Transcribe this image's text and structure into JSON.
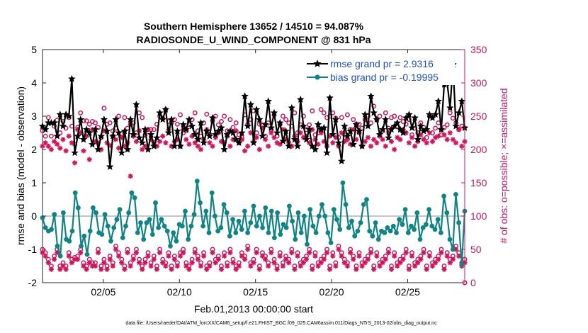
{
  "chart_data": {
    "type": "line",
    "title_line1": "Southern Hemisphere 13652 / 14510 = 94.087%",
    "title_line2": "RADIOSONDE_U_WIND_COMPONENT @ 831 hPa",
    "xlabel": "Feb.01,2013 00:00:00 start",
    "ylabel_left": "rmse and bias (model - observation)",
    "ylabel_right": "# of obs: o=possible; ×=assimilated",
    "ylim_left": [
      -2,
      5
    ],
    "ylim_right": [
      0,
      350
    ],
    "xlim_days": [
      1.0,
      28.75
    ],
    "x_tick_labels": [
      "02/05",
      "02/10",
      "02/15",
      "02/20",
      "02/25"
    ],
    "x_tick_days": [
      5,
      10,
      15,
      20,
      25
    ],
    "y_left_ticks": [
      "-2",
      "-1",
      "0",
      "1",
      "2",
      "3",
      "4",
      "5"
    ],
    "y_right_ticks": [
      "0",
      "50",
      "100",
      "150",
      "200",
      "250",
      "300",
      "350"
    ],
    "footer": "data file: /Users/raeder/DAI/ATM_forcXX/CAM6_setup/f.e21.FHIST_BGC.f09_025.CAM6assim.011/Diags_NTrS_2013-02/obs_diag_output.nc",
    "legend": {
      "placement": "top-right"
    },
    "series": [
      {
        "name": "rmse grand pr = 2.9316",
        "color": "#000000",
        "marker": "star",
        "values": [
          2.7,
          2.6,
          2.8,
          2.8,
          2.8,
          2.4,
          3.05,
          2.7,
          3.05,
          3.0,
          4.12,
          1.9,
          2.4,
          2.9,
          2.3,
          2.6,
          2.5,
          2.15,
          2.6,
          2.0,
          2.4,
          2.9,
          2.55,
          1.48,
          2.4,
          2.9,
          2.5,
          1.9,
          2.55,
          2.0,
          2.9,
          2.45,
          3.35,
          2.35,
          2.2,
          2.6,
          2.0,
          2.45,
          2.1,
          2.35,
          3.1,
          2.9,
          3.2,
          2.5,
          2.9,
          2.1,
          2.55,
          2.1,
          2.75,
          2.6,
          2.9,
          2.7,
          2.45,
          2.3,
          2.8,
          2.2,
          2.55,
          2.4,
          2.95,
          2.45,
          2.55,
          2.65,
          2.0,
          2.45,
          2.55,
          2.5,
          2.3,
          2.2,
          2.5,
          3.6,
          2.7,
          3.35,
          2.2,
          3.2,
          2.9,
          2.4,
          2.75,
          3.45,
          2.65,
          3.1,
          2.5,
          2.8,
          2.25,
          2.55,
          2.1,
          3.25,
          2.3,
          2.1,
          3.5,
          2.7,
          2.3,
          2.6,
          2.1,
          2.0,
          2.75,
          2.6,
          2.65,
          1.9,
          3.55,
          2.45,
          2.9,
          2.2,
          1.65,
          2.7,
          2.4,
          2.55,
          2.15,
          2.75,
          2.55,
          2.1,
          3.05,
          2.7,
          3.6,
          3.1,
          2.9,
          2.45,
          2.6,
          2.9,
          2.35,
          2.6,
          2.7,
          2.8,
          2.6,
          2.5,
          2.95,
          3.05,
          2.65,
          2.95,
          2.3,
          2.7,
          2.55,
          2.6,
          3.05,
          2.95,
          3.05,
          3.45,
          2.6,
          3.95,
          4.0,
          3.25,
          4.55,
          2.7,
          3.1,
          3.45,
          2.65
        ]
      },
      {
        "name": "bias grand pr = -0.19995",
        "color": "#0d8585",
        "marker": "circle",
        "values": [
          -0.05,
          -0.35,
          -0.45,
          -0.4,
          0.05,
          -0.9,
          -1.2,
          0.1,
          -0.7,
          -0.75,
          -0.45,
          0.7,
          0.25,
          -0.9,
          -0.6,
          -1.15,
          -0.45,
          0.25,
          0.1,
          -0.5,
          -0.55,
          0.05,
          -0.3,
          -0.75,
          -0.35,
          -0.1,
          0.2,
          -0.65,
          -0.3,
          0.1,
          0.7,
          0.55,
          -0.5,
          -0.2,
          -0.7,
          -0.2,
          -0.1,
          -0.55,
          0.4,
          -0.35,
          -0.1,
          -0.3,
          -0.45,
          -0.9,
          -0.5,
          -0.75,
          -0.25,
          -0.3,
          0.15,
          -0.7,
          -0.3,
          0.05,
          1.05,
          0.4,
          -0.3,
          0.15,
          -0.5,
          0.7,
          0.0,
          -0.45,
          -0.35,
          0.35,
          0.1,
          -0.6,
          -0.1,
          -0.5,
          -0.15,
          -0.4,
          0.15,
          -0.5,
          -0.2,
          0.3,
          -0.3,
          0.0,
          -0.35,
          0.25,
          -0.5,
          0.15,
          -0.65,
          0.1,
          -0.55,
          -0.25,
          -0.35,
          0.3,
          -0.15,
          -0.7,
          0.1,
          -0.5,
          0.0,
          -0.85,
          0.2,
          -0.3,
          -0.5,
          0.0,
          0.35,
          0.0,
          -0.5,
          -0.8,
          0.2,
          -0.1,
          -0.4,
          1.0,
          0.35,
          -0.35,
          -0.15,
          -0.6,
          -0.45,
          -0.2,
          0.35,
          0.5,
          -0.45,
          -0.6,
          -0.2,
          -0.7,
          -0.45,
          -0.5,
          -0.35,
          -0.45,
          -0.3,
          -0.5,
          -0.1,
          -0.25,
          0.2,
          -0.5,
          -0.3,
          -0.4,
          0.1,
          -0.7,
          -0.35,
          -0.25,
          0.2,
          -0.3,
          -0.4,
          -0.1,
          -0.5,
          0.6,
          0.1,
          -0.7,
          -1.0,
          0.65,
          -0.2,
          -1.45,
          0.15
        ]
      },
      {
        "name": "possible",
        "color": "#d4145a",
        "marker": "o",
        "axis": "right",
        "values": [
          228,
          220,
          248,
          220,
          235,
          244,
          225,
          242,
          232,
          248,
          235,
          208,
          233,
          255,
          243,
          243,
          238,
          242,
          240,
          233,
          218,
          262,
          238,
          240,
          228,
          232,
          250,
          224,
          248,
          232,
          238,
          240,
          225,
          255,
          248,
          222,
          230,
          230,
          230,
          238,
          250,
          247,
          260,
          242,
          240,
          245,
          238,
          252,
          225,
          228,
          237,
          245,
          255,
          228,
          220,
          240,
          253,
          223,
          243,
          250,
          237,
          242,
          250,
          228,
          245,
          233,
          240,
          222,
          218,
          252,
          238,
          245,
          258,
          225,
          238,
          237,
          220,
          240,
          230,
          252,
          220,
          238,
          250,
          245,
          240,
          235,
          255,
          225,
          237,
          250,
          230,
          237,
          258,
          222,
          225,
          260,
          255,
          248,
          250,
          255,
          247,
          218,
          248,
          222,
          252,
          230,
          245,
          238,
          238,
          232,
          245,
          250,
          240,
          265,
          245,
          250,
          228,
          255,
          232,
          248,
          250,
          235,
          248,
          242,
          238,
          245,
          222,
          232,
          225,
          240,
          233,
          218,
          250,
          225,
          232,
          240,
          222,
          233,
          237,
          255,
          247,
          240,
          230,
          235,
          0
        ]
      },
      {
        "name": "assimilated",
        "color": "#d4145a",
        "marker": "x",
        "axis": "right",
        "values": [
          205,
          210,
          205,
          200,
          212,
          208,
          202,
          215,
          198,
          220,
          210,
          180,
          230,
          225,
          198,
          220,
          185,
          230,
          212,
          210,
          200,
          228,
          210,
          206,
          220,
          215,
          202,
          218,
          205,
          210,
          160,
          220,
          212,
          228,
          200,
          205,
          230,
          215,
          210,
          205,
          212,
          220,
          210,
          230,
          205,
          212,
          215,
          205,
          230,
          215,
          208,
          220,
          210,
          205,
          200,
          215,
          230,
          210,
          205,
          218,
          225,
          212,
          210,
          220,
          205,
          215,
          228,
          210,
          215,
          198,
          205,
          225,
          212,
          218,
          200,
          232,
          215,
          205,
          225,
          218,
          210,
          208,
          230,
          215,
          210,
          205,
          220,
          212,
          225,
          218,
          220,
          210,
          230,
          215,
          208,
          225,
          212,
          205,
          220,
          210,
          218,
          205,
          225,
          212,
          215,
          208,
          230,
          215,
          225,
          205,
          212,
          218,
          205,
          215,
          210,
          220,
          215,
          205,
          225,
          212,
          200,
          218,
          215,
          230,
          225,
          210,
          218,
          205,
          212,
          222,
          215,
          210,
          225,
          212,
          218,
          220,
          230,
          222,
          215,
          225,
          215,
          210,
          230,
          205,
          212
        ]
      },
      {
        "name": "possible-low",
        "color": "#d4145a",
        "marker": "o",
        "axis": "right",
        "values": [
          50,
          45,
          35,
          25,
          40,
          50,
          25,
          30,
          25,
          45,
          35,
          38,
          40,
          50,
          30,
          25,
          35,
          30,
          30,
          50,
          25,
          35,
          25,
          40,
          30,
          55,
          45,
          35,
          25,
          50,
          30,
          40,
          50,
          35,
          25,
          35,
          45,
          30,
          40,
          25,
          50,
          35,
          30,
          45,
          25,
          40,
          30,
          45,
          50,
          30,
          25,
          35,
          50,
          40,
          30,
          45,
          25,
          30,
          50,
          35,
          40,
          25,
          45,
          30,
          50,
          35,
          25,
          30,
          45,
          40,
          55,
          30,
          35,
          50,
          25,
          45,
          40,
          30,
          50,
          35,
          25,
          45,
          30,
          40,
          35,
          50,
          25,
          45,
          30,
          35,
          40,
          50,
          25,
          45,
          30,
          35,
          40,
          50,
          25,
          45,
          30,
          55,
          45,
          35,
          30,
          50,
          40,
          25,
          45,
          30,
          35,
          40,
          50,
          25,
          45,
          30,
          35,
          40,
          50,
          25,
          45,
          30,
          35,
          40,
          50,
          25,
          45,
          30,
          35,
          40,
          50,
          25,
          45,
          30,
          35,
          40,
          50,
          25,
          45,
          35,
          40,
          55,
          45,
          30,
          35
        ]
      },
      {
        "name": "assimilated-low",
        "color": "#d4145a",
        "marker": "x",
        "axis": "right",
        "values": [
          45,
          40,
          30,
          20,
          35,
          45,
          20,
          25,
          20,
          40,
          30,
          35,
          35,
          45,
          25,
          20,
          30,
          25,
          25,
          45,
          20,
          30,
          20,
          35,
          25,
          50,
          40,
          30,
          20,
          45,
          25,
          35,
          45,
          30,
          20,
          30,
          40,
          25,
          35,
          20,
          45,
          30,
          25,
          40,
          20,
          35,
          25,
          40,
          45,
          25,
          20,
          30,
          45,
          35,
          25,
          40,
          20,
          25,
          45,
          30,
          35,
          20,
          40,
          25,
          45,
          30,
          20,
          25,
          40,
          35,
          50,
          25,
          30,
          45,
          20,
          40,
          35,
          25,
          45,
          30,
          20,
          40,
          25,
          35,
          30,
          45,
          20,
          40,
          25,
          30,
          35,
          45,
          20,
          40,
          25,
          30,
          35,
          45,
          20,
          40,
          25,
          50,
          40,
          30,
          25,
          45,
          35,
          20,
          40,
          25,
          30,
          35,
          45,
          20,
          40,
          25,
          30,
          35,
          45,
          20,
          40,
          25,
          30,
          35,
          45,
          20,
          40,
          25,
          30,
          35,
          45,
          20,
          40,
          25,
          30,
          35,
          45,
          20,
          40,
          30,
          35,
          50,
          40,
          25,
          30
        ]
      }
    ]
  }
}
